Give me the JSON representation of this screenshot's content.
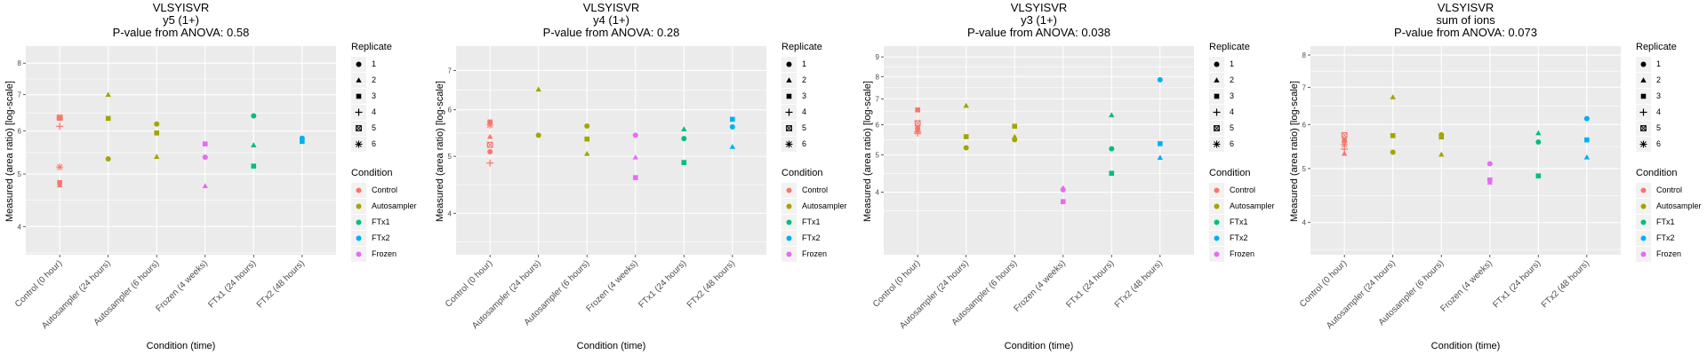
{
  "chart_data": [
    {
      "type": "scatter",
      "title": "VLSYISVR",
      "subtitle": "y5 (1+)",
      "pvalue_label": "P-value from ANOVA: 0.58",
      "xlabel": "Condition (time)",
      "ylabel": "Measured (area ratio) [log-scale]",
      "yscale": "log",
      "ylim": [
        3.55,
        8.6
      ],
      "yticks": [
        4,
        5,
        6,
        7,
        8
      ],
      "categories": [
        "Control (0 hour)",
        "Autosampler (24 hours)",
        "Autosampler (6 hours)",
        "Frozen (4 weeks)",
        "FTx1 (24 hours)",
        "FTx2 (48 hours)"
      ],
      "points": [
        {
          "cat": 0,
          "cond": "Control",
          "rep": 1,
          "y": 6.33
        },
        {
          "cat": 0,
          "cond": "Control",
          "rep": 5,
          "y": 6.35
        },
        {
          "cat": 0,
          "cond": "Control",
          "rep": 4,
          "y": 6.12
        },
        {
          "cat": 0,
          "cond": "Control",
          "rep": 6,
          "y": 5.15
        },
        {
          "cat": 0,
          "cond": "Control",
          "rep": 3,
          "y": 4.82
        },
        {
          "cat": 0,
          "cond": "Control",
          "rep": 2,
          "y": 4.77
        },
        {
          "cat": 1,
          "cond": "Autosampler",
          "rep": 2,
          "y": 7.0
        },
        {
          "cat": 1,
          "cond": "Autosampler",
          "rep": 3,
          "y": 6.33
        },
        {
          "cat": 1,
          "cond": "Autosampler",
          "rep": 1,
          "y": 5.33
        },
        {
          "cat": 2,
          "cond": "Autosampler",
          "rep": 1,
          "y": 6.18
        },
        {
          "cat": 2,
          "cond": "Autosampler",
          "rep": 3,
          "y": 5.95
        },
        {
          "cat": 2,
          "cond": "Autosampler",
          "rep": 2,
          "y": 5.38
        },
        {
          "cat": 3,
          "cond": "Frozen",
          "rep": 3,
          "y": 5.68
        },
        {
          "cat": 3,
          "cond": "Frozen",
          "rep": 1,
          "y": 5.37
        },
        {
          "cat": 3,
          "cond": "Frozen",
          "rep": 2,
          "y": 4.75
        },
        {
          "cat": 4,
          "cond": "FTx1",
          "rep": 1,
          "y": 6.4
        },
        {
          "cat": 4,
          "cond": "FTx1",
          "rep": 2,
          "y": 5.65
        },
        {
          "cat": 4,
          "cond": "FTx1",
          "rep": 3,
          "y": 5.17
        },
        {
          "cat": 5,
          "cond": "FTx2",
          "rep": 1,
          "y": 5.82
        },
        {
          "cat": 5,
          "cond": "FTx2",
          "rep": 3,
          "y": 5.74
        }
      ]
    },
    {
      "type": "scatter",
      "title": "VLSYISVR",
      "subtitle": "y4 (1+)",
      "pvalue_label": "P-value from ANOVA: 0.28",
      "xlabel": "Condition (time)",
      "ylabel": "Measured (area ratio) [log-scale]",
      "yscale": "log",
      "ylim": [
        3.4,
        7.7
      ],
      "yticks": [
        4,
        5,
        6,
        7
      ],
      "categories": [
        "Control (0 hour)",
        "Autosampler (24 hours)",
        "Autosampler (6 hours)",
        "Frozen (4 weeks)",
        "FTx1 (24 hours)",
        "FTx2 (48 hours)"
      ],
      "points": [
        {
          "cat": 0,
          "cond": "Control",
          "rep": 3,
          "y": 5.72
        },
        {
          "cat": 0,
          "cond": "Control",
          "rep": 6,
          "y": 5.65
        },
        {
          "cat": 0,
          "cond": "Control",
          "rep": 2,
          "y": 5.4
        },
        {
          "cat": 0,
          "cond": "Control",
          "rep": 5,
          "y": 5.23
        },
        {
          "cat": 0,
          "cond": "Control",
          "rep": 1,
          "y": 5.09
        },
        {
          "cat": 0,
          "cond": "Control",
          "rep": 4,
          "y": 4.87
        },
        {
          "cat": 1,
          "cond": "Autosampler",
          "rep": 2,
          "y": 6.5
        },
        {
          "cat": 1,
          "cond": "Autosampler",
          "rep": 1,
          "y": 5.43
        },
        {
          "cat": 2,
          "cond": "Autosampler",
          "rep": 1,
          "y": 5.63
        },
        {
          "cat": 2,
          "cond": "Autosampler",
          "rep": 3,
          "y": 5.35
        },
        {
          "cat": 2,
          "cond": "Autosampler",
          "rep": 2,
          "y": 5.05
        },
        {
          "cat": 3,
          "cond": "Frozen",
          "rep": 1,
          "y": 5.43
        },
        {
          "cat": 3,
          "cond": "Frozen",
          "rep": 2,
          "y": 4.98
        },
        {
          "cat": 3,
          "cond": "Frozen",
          "rep": 3,
          "y": 4.6
        },
        {
          "cat": 4,
          "cond": "FTx1",
          "rep": 2,
          "y": 5.56
        },
        {
          "cat": 4,
          "cond": "FTx1",
          "rep": 1,
          "y": 5.36
        },
        {
          "cat": 4,
          "cond": "FTx1",
          "rep": 3,
          "y": 4.88
        },
        {
          "cat": 5,
          "cond": "FTx2",
          "rep": 3,
          "y": 5.78
        },
        {
          "cat": 5,
          "cond": "FTx2",
          "rep": 1,
          "y": 5.61
        },
        {
          "cat": 5,
          "cond": "FTx2",
          "rep": 2,
          "y": 5.19
        }
      ]
    },
    {
      "type": "scatter",
      "title": "VLSYISVR",
      "subtitle": "y3 (1+)",
      "pvalue_label": "P-value from ANOVA: 0.038",
      "xlabel": "Condition (time)",
      "ylabel": "Measured (area ratio) [log-scale]",
      "yscale": "log",
      "ylim": [
        2.75,
        9.6
      ],
      "yticks": [
        4,
        5,
        6,
        7,
        8,
        9
      ],
      "categories": [
        "Control (0 hour)",
        "Autosampler (24 hours)",
        "Autosampler (6 hours)",
        "Frozen (4 weeks)",
        "FTx1 (24 hours)",
        "FTx2 (48 hours)"
      ],
      "points": [
        {
          "cat": 0,
          "cond": "Control",
          "rep": 3,
          "y": 6.55
        },
        {
          "cat": 0,
          "cond": "Control",
          "rep": 5,
          "y": 6.05
        },
        {
          "cat": 0,
          "cond": "Control",
          "rep": 1,
          "y": 5.88
        },
        {
          "cat": 0,
          "cond": "Control",
          "rep": 2,
          "y": 5.83
        },
        {
          "cat": 0,
          "cond": "Control",
          "rep": 6,
          "y": 5.75
        },
        {
          "cat": 0,
          "cond": "Control",
          "rep": 4,
          "y": 5.7
        },
        {
          "cat": 1,
          "cond": "Autosampler",
          "rep": 2,
          "y": 6.72
        },
        {
          "cat": 1,
          "cond": "Autosampler",
          "rep": 3,
          "y": 5.58
        },
        {
          "cat": 1,
          "cond": "Autosampler",
          "rep": 1,
          "y": 5.22
        },
        {
          "cat": 2,
          "cond": "Autosampler",
          "rep": 3,
          "y": 5.94
        },
        {
          "cat": 2,
          "cond": "Autosampler",
          "rep": 2,
          "y": 5.58
        },
        {
          "cat": 2,
          "cond": "Autosampler",
          "rep": 1,
          "y": 5.48
        },
        {
          "cat": 3,
          "cond": "Frozen",
          "rep": 2,
          "y": 4.1
        },
        {
          "cat": 3,
          "cond": "Frozen",
          "rep": 1,
          "y": 4.06
        },
        {
          "cat": 3,
          "cond": "Frozen",
          "rep": 3,
          "y": 3.78
        },
        {
          "cat": 4,
          "cond": "FTx1",
          "rep": 2,
          "y": 6.35
        },
        {
          "cat": 4,
          "cond": "FTx1",
          "rep": 1,
          "y": 5.19
        },
        {
          "cat": 4,
          "cond": "FTx1",
          "rep": 3,
          "y": 4.48
        },
        {
          "cat": 5,
          "cond": "FTx2",
          "rep": 1,
          "y": 7.85
        },
        {
          "cat": 5,
          "cond": "FTx2",
          "rep": 3,
          "y": 5.35
        },
        {
          "cat": 5,
          "cond": "FTx2",
          "rep": 2,
          "y": 4.92
        }
      ]
    },
    {
      "type": "scatter",
      "title": "VLSYISVR",
      "subtitle": "sum of ions",
      "pvalue_label": "P-value from ANOVA: 0.073",
      "xlabel": "Condition (time)",
      "ylabel": "Measured (area ratio) [log-scale]",
      "yscale": "log",
      "ylim": [
        3.5,
        8.3
      ],
      "yticks": [
        4,
        5,
        6,
        7,
        8
      ],
      "categories": [
        "Control (0 hour)",
        "Autosampler (24 hours)",
        "Autosampler (6 hours)",
        "Frozen (4 weeks)",
        "FTx1 (24 hours)",
        "FTx2 (48 hours)"
      ],
      "points": [
        {
          "cat": 0,
          "cond": "Control",
          "rep": 5,
          "y": 5.74
        },
        {
          "cat": 0,
          "cond": "Control",
          "rep": 1,
          "y": 5.62
        },
        {
          "cat": 0,
          "cond": "Control",
          "rep": 6,
          "y": 5.52
        },
        {
          "cat": 0,
          "cond": "Control",
          "rep": 4,
          "y": 5.42
        },
        {
          "cat": 0,
          "cond": "Control",
          "rep": 2,
          "y": 5.32
        },
        {
          "cat": 1,
          "cond": "Autosampler",
          "rep": 2,
          "y": 6.72
        },
        {
          "cat": 1,
          "cond": "Autosampler",
          "rep": 3,
          "y": 5.73
        },
        {
          "cat": 1,
          "cond": "Autosampler",
          "rep": 1,
          "y": 5.35
        },
        {
          "cat": 2,
          "cond": "Autosampler",
          "rep": 1,
          "y": 5.75
        },
        {
          "cat": 2,
          "cond": "Autosampler",
          "rep": 3,
          "y": 5.7
        },
        {
          "cat": 2,
          "cond": "Autosampler",
          "rep": 2,
          "y": 5.3
        },
        {
          "cat": 3,
          "cond": "Frozen",
          "rep": 1,
          "y": 5.1
        },
        {
          "cat": 3,
          "cond": "Frozen",
          "rep": 3,
          "y": 4.77
        },
        {
          "cat": 3,
          "cond": "Frozen",
          "rep": 2,
          "y": 4.72
        },
        {
          "cat": 4,
          "cond": "FTx1",
          "rep": 2,
          "y": 5.79
        },
        {
          "cat": 4,
          "cond": "FTx1",
          "rep": 1,
          "y": 5.58
        },
        {
          "cat": 4,
          "cond": "FTx1",
          "rep": 3,
          "y": 4.85
        },
        {
          "cat": 5,
          "cond": "FTx2",
          "rep": 1,
          "y": 6.15
        },
        {
          "cat": 5,
          "cond": "FTx2",
          "rep": 3,
          "y": 5.63
        },
        {
          "cat": 5,
          "cond": "FTx2",
          "rep": 2,
          "y": 5.24
        }
      ]
    }
  ],
  "legend": {
    "replicate_title": "Replicate",
    "replicates": [
      {
        "label": "1",
        "shape": "circle"
      },
      {
        "label": "2",
        "shape": "triangle"
      },
      {
        "label": "3",
        "shape": "square"
      },
      {
        "label": "4",
        "shape": "plus"
      },
      {
        "label": "5",
        "shape": "boxed-cross"
      },
      {
        "label": "6",
        "shape": "asterisk"
      }
    ],
    "condition_title": "Condition",
    "conditions": [
      {
        "label": "Control",
        "color": "#F8766D"
      },
      {
        "label": "Autosampler",
        "color": "#A3A500"
      },
      {
        "label": "FTx1",
        "color": "#00BF7D"
      },
      {
        "label": "FTx2",
        "color": "#00B0F6"
      },
      {
        "label": "Frozen",
        "color": "#E76BF3"
      }
    ]
  },
  "colors": {
    "panel_bg": "#EBEBEB",
    "grid": "#FFFFFF",
    "tick_text": "#4D4D4D"
  }
}
